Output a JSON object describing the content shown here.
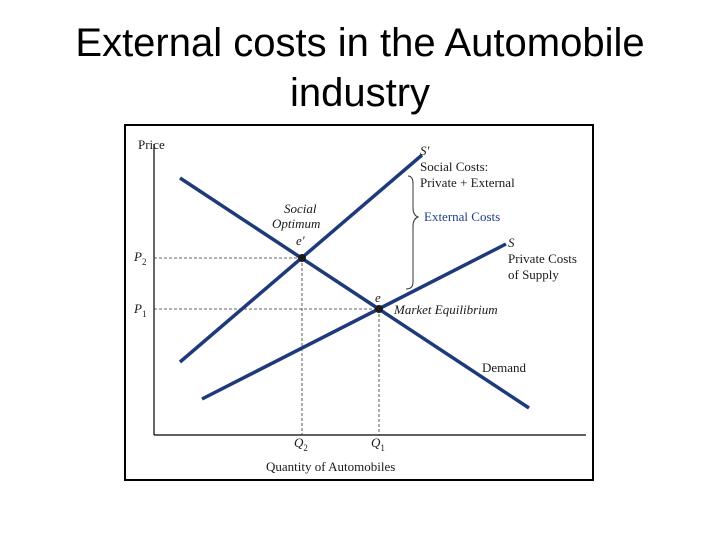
{
  "slide": {
    "title_line1": "External costs in the Automobile",
    "title_line2": "industry"
  },
  "diagram": {
    "y_axis_label": "Price",
    "x_axis_label": "Quantity of Automobiles",
    "p2": "P",
    "p2_sub": "2",
    "p1": "P",
    "p1_sub": "1",
    "q2": "Q",
    "q2_sub": "2",
    "q1": "Q",
    "q1_sub": "1",
    "s_prime": "S'",
    "social_costs_line1": "Social Costs:",
    "social_costs_line2": "Private + External",
    "external_costs": "External Costs",
    "s": "S",
    "private_costs_line1": "Private Costs",
    "private_costs_line2": "of Supply",
    "social_optimum_line1": "Social",
    "social_optimum_line2": "Optimum",
    "e_prime": "e'",
    "e": "e",
    "market_equilibrium": "Market Equilibrium",
    "demand": "Demand",
    "colors": {
      "curve": "#1f3a7a",
      "axis": "#000000",
      "label_blue": "#1f3f8f"
    }
  }
}
